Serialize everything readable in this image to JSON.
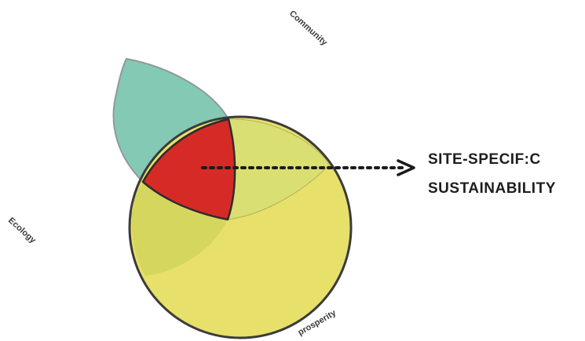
{
  "diagram": {
    "labels": {
      "community": "Community",
      "ecology": "Ecology",
      "prosperity": "prosperity"
    },
    "callout": {
      "line1": "SITE-SPECIF:C",
      "line2": "SUSTAINABILITY"
    },
    "colors": {
      "community_leaf": "#84c9b4",
      "prosperity_circle": "#e7e06a",
      "ecology_overlap": "#d4d65e",
      "community_prosperity_overlap": "#dadf73",
      "center_overlap": "#d62a27",
      "outline": "#3b3b3b",
      "text": "#1e1e1e"
    }
  }
}
